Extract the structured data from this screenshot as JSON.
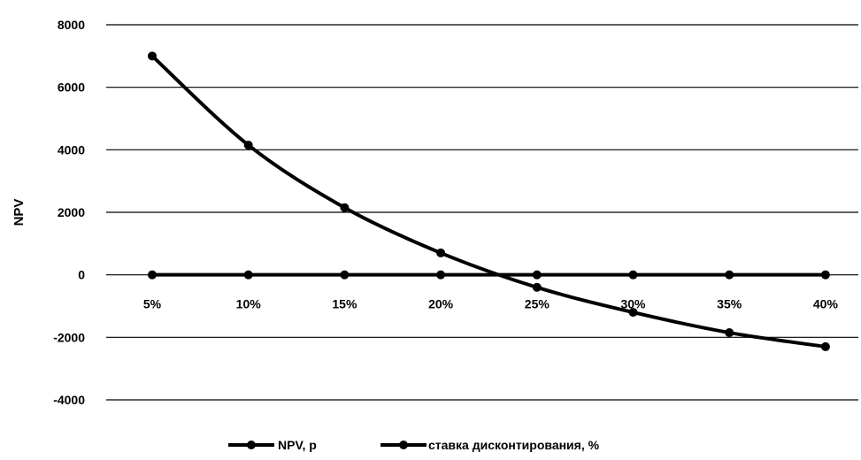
{
  "chart_data": {
    "type": "line",
    "categories": [
      "5%",
      "10%",
      "15%",
      "20%",
      "25%",
      "30%",
      "35%",
      "40%"
    ],
    "ylabel": "NPV",
    "xlabel": "",
    "ylim": [
      -4000,
      8000
    ],
    "yticks": [
      -4000,
      -2000,
      0,
      2000,
      4000,
      6000,
      8000
    ],
    "grid": true,
    "legend_position": "bottom",
    "series": [
      {
        "name": "NPV, p",
        "values": [
          7000,
          4150,
          2150,
          700,
          -400,
          -1200,
          -1850,
          -2300
        ],
        "color": "#000000"
      },
      {
        "name": "ставка дисконтирования, %",
        "values": [
          0,
          0,
          0,
          0,
          0,
          0,
          0,
          0
        ],
        "color": "#000000"
      }
    ]
  }
}
